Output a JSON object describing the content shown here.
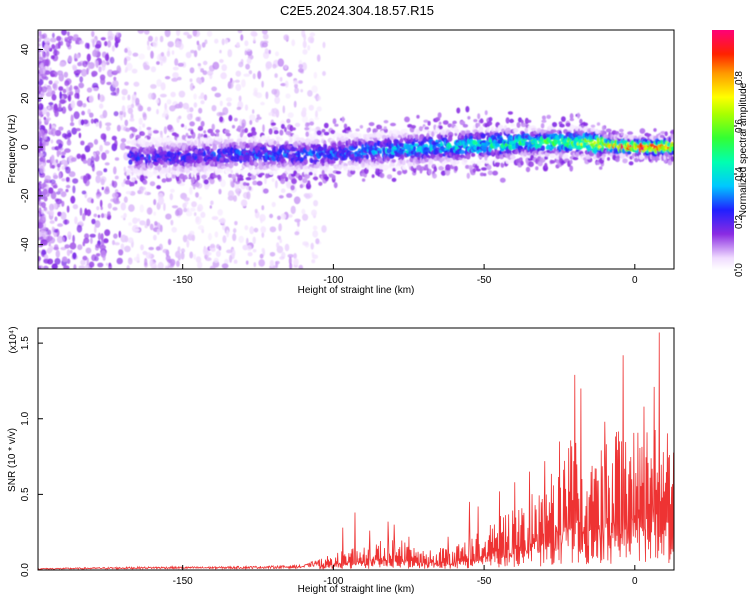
{
  "title": "C2E5.2024.304.18.57.R15",
  "chart_data": [
    {
      "type": "heatmap",
      "xlabel": "Height of straight line (km)",
      "ylabel": "Frequency (Hz)",
      "xlim": [
        -198,
        13
      ],
      "ylim": [
        -50,
        48
      ],
      "xticks": [
        -150,
        -100,
        -50,
        0
      ],
      "xtick_labels": [
        "-150",
        "-100",
        "-50",
        "0"
      ],
      "yticks": [
        -40,
        -20,
        0,
        20,
        40
      ],
      "ytick_labels": [
        "-40",
        "-20",
        "0",
        "20",
        "40"
      ],
      "colorbar": {
        "label": "Normalized spectral amplitude",
        "range": [
          0,
          1
        ],
        "ticks": [
          0.0,
          0.2,
          0.4,
          0.6,
          0.8
        ],
        "tick_labels": [
          "0.0",
          "0.2",
          "0.4",
          "0.6",
          "0.8"
        ],
        "colormap": "rainbow (white-violet-blue-cyan-green-yellow-red-magenta)"
      },
      "band_center": [
        [
          -165,
          -4
        ],
        [
          -150,
          -4
        ],
        [
          -135,
          -3
        ],
        [
          -120,
          -3
        ],
        [
          -105,
          -3
        ],
        [
          -95,
          -2
        ],
        [
          -80,
          -1
        ],
        [
          -65,
          0
        ],
        [
          -50,
          1
        ],
        [
          -35,
          2
        ],
        [
          -20,
          2
        ],
        [
          -10,
          1
        ],
        [
          0,
          0
        ],
        [
          10,
          0
        ]
      ],
      "band_peak_amplitude": [
        [
          -165,
          0.25
        ],
        [
          -150,
          0.25
        ],
        [
          -135,
          0.27
        ],
        [
          -120,
          0.3
        ],
        [
          -105,
          0.3
        ],
        [
          -95,
          0.3
        ],
        [
          -80,
          0.38
        ],
        [
          -65,
          0.4
        ],
        [
          -50,
          0.45
        ],
        [
          -35,
          0.5
        ],
        [
          -20,
          0.6
        ],
        [
          -10,
          0.75
        ],
        [
          0,
          0.95
        ],
        [
          10,
          0.9
        ]
      ],
      "grid": false
    },
    {
      "type": "line",
      "xlabel": "Height of straight line (km)",
      "ylabel": "SNR (10 * v/v)",
      "y_multiplier": "(x10⁴)",
      "xlim": [
        -198,
        13
      ],
      "ylim": [
        0,
        1.6
      ],
      "xticks": [
        -150,
        -100,
        -50,
        0
      ],
      "xtick_labels": [
        "-150",
        "-100",
        "-50",
        "0"
      ],
      "yticks": [
        0.0,
        0.5,
        1.0,
        1.5
      ],
      "ytick_labels": [
        "0.0",
        "0.5",
        "1.0",
        "1.5"
      ],
      "series": [
        {
          "color": "#ee3333",
          "envelope": [
            [
              -198,
              0.01
            ],
            [
              -180,
              0.015
            ],
            [
              -160,
              0.02
            ],
            [
              -140,
              0.02
            ],
            [
              -120,
              0.025
            ],
            [
              -110,
              0.03
            ],
            [
              -100,
              0.1
            ],
            [
              -90,
              0.15
            ],
            [
              -80,
              0.2
            ],
            [
              -70,
              0.12
            ],
            [
              -60,
              0.15
            ],
            [
              -50,
              0.25
            ],
            [
              -40,
              0.4
            ],
            [
              -30,
              0.5
            ],
            [
              -20,
              0.85
            ],
            [
              -15,
              0.7
            ],
            [
              -10,
              0.75
            ],
            [
              -5,
              0.9
            ],
            [
              0,
              0.85
            ],
            [
              5,
              1.0
            ],
            [
              8,
              1.55
            ],
            [
              10,
              0.9
            ],
            [
              13,
              0.7
            ]
          ],
          "spikes": [
            [
              -97,
              0.28
            ],
            [
              -93,
              0.38
            ],
            [
              -88,
              0.26
            ],
            [
              -82,
              0.32
            ],
            [
              -80,
              0.3
            ],
            [
              -75,
              0.22
            ],
            [
              -62,
              0.22
            ],
            [
              -55,
              0.45
            ],
            [
              -52,
              0.42
            ],
            [
              -45,
              0.52
            ],
            [
              -40,
              0.58
            ],
            [
              -35,
              0.65
            ],
            [
              -30,
              0.72
            ],
            [
              -25,
              0.85
            ],
            [
              -20,
              1.29
            ],
            [
              -18,
              1.2
            ],
            [
              -10,
              0.98
            ],
            [
              -4,
              1.42
            ],
            [
              3,
              1.08
            ],
            [
              8,
              1.57
            ]
          ]
        }
      ],
      "grid": false
    }
  ]
}
